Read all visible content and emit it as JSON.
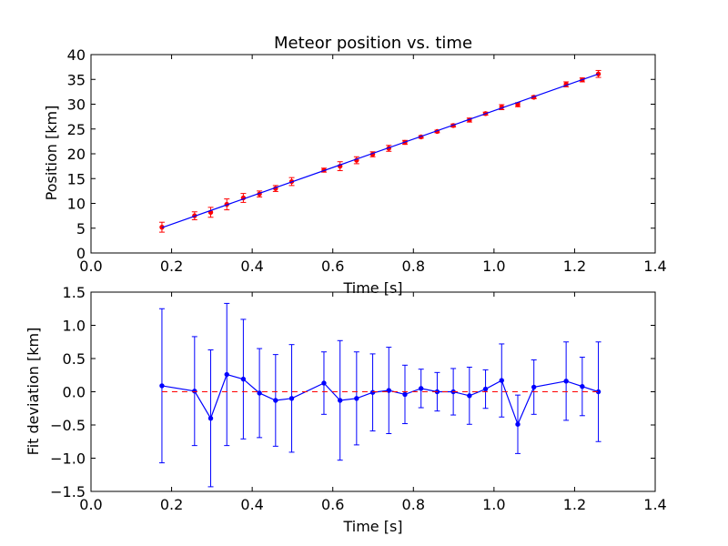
{
  "chart_data": [
    {
      "type": "scatter",
      "title": "Meteor position vs. time",
      "xlabel": "Time [s]",
      "ylabel": "Position [km]",
      "xlim": [
        0.0,
        1.4
      ],
      "ylim": [
        0,
        40
      ],
      "xticks": [
        "0.0",
        "0.2",
        "0.4",
        "0.6",
        "0.8",
        "1.0",
        "1.2",
        "1.4"
      ],
      "yticks": [
        "0",
        "5",
        "10",
        "15",
        "20",
        "25",
        "30",
        "35",
        "40"
      ],
      "grid": false,
      "legend": "none",
      "series": [
        {
          "style": "markers-with-errorbars",
          "color": "#ff0000",
          "x": [
            0.176,
            0.257,
            0.297,
            0.337,
            0.378,
            0.418,
            0.458,
            0.498,
            0.578,
            0.618,
            0.659,
            0.699,
            0.739,
            0.779,
            0.819,
            0.859,
            0.899,
            0.939,
            0.979,
            1.019,
            1.059,
            1.099,
            1.179,
            1.219,
            1.259
          ],
          "y": [
            5.2,
            7.5,
            8.2,
            9.8,
            11.1,
            11.9,
            13.0,
            14.4,
            16.7,
            17.5,
            18.7,
            19.9,
            21.1,
            22.3,
            23.4,
            24.5,
            25.7,
            26.8,
            28.1,
            29.4,
            29.9,
            31.4,
            34.0,
            34.9,
            36.1
          ],
          "yerr": [
            1.0,
            0.8,
            1.0,
            1.1,
            0.9,
            0.6,
            0.6,
            0.8,
            0.4,
            0.9,
            0.7,
            0.5,
            0.6,
            0.4,
            0.25,
            0.25,
            0.3,
            0.4,
            0.3,
            0.5,
            0.4,
            0.3,
            0.5,
            0.4,
            0.7
          ]
        },
        {
          "style": "fit-line",
          "color": "#0000ff",
          "x": [
            0.176,
            1.259
          ],
          "y": [
            5.1,
            36.1
          ]
        }
      ]
    },
    {
      "type": "line",
      "xlabel": "Time [s]",
      "ylabel": "Fit deviation [km]",
      "xlim": [
        0.0,
        1.4
      ],
      "ylim": [
        -1.5,
        1.5
      ],
      "xticks": [
        "0.0",
        "0.2",
        "0.4",
        "0.6",
        "0.8",
        "1.0",
        "1.2",
        "1.4"
      ],
      "yticks": [
        "1.5",
        "1.0",
        "0.5",
        "0.0",
        "−0.5",
        "−1.0",
        "−1.5"
      ],
      "ytick_values": [
        1.5,
        1.0,
        0.5,
        0.0,
        -0.5,
        -1.0,
        -1.5
      ],
      "grid": false,
      "legend": "none",
      "series": [
        {
          "style": "line-markers-errorbars",
          "color": "#0000ff",
          "x": [
            0.176,
            0.257,
            0.297,
            0.337,
            0.378,
            0.418,
            0.458,
            0.498,
            0.578,
            0.618,
            0.659,
            0.699,
            0.739,
            0.779,
            0.819,
            0.859,
            0.899,
            0.939,
            0.979,
            1.019,
            1.059,
            1.099,
            1.179,
            1.219,
            1.259
          ],
          "y": [
            0.09,
            0.01,
            -0.4,
            0.26,
            0.19,
            -0.02,
            -0.13,
            -0.1,
            0.13,
            -0.13,
            -0.1,
            -0.01,
            0.02,
            -0.04,
            0.05,
            0.0,
            0.0,
            -0.06,
            0.04,
            0.17,
            -0.49,
            0.07,
            0.16,
            0.08,
            0.0
          ],
          "yerr": [
            1.16,
            0.82,
            1.03,
            1.07,
            0.9,
            0.67,
            0.69,
            0.81,
            0.47,
            0.9,
            0.7,
            0.58,
            0.65,
            0.44,
            0.29,
            0.29,
            0.35,
            0.43,
            0.29,
            0.55,
            0.44,
            0.41,
            0.59,
            0.44,
            0.75
          ]
        },
        {
          "style": "dashed-reference",
          "color": "#ff0000",
          "x": [
            0.176,
            1.259
          ],
          "y": [
            0.0,
            0.0
          ]
        }
      ]
    }
  ]
}
